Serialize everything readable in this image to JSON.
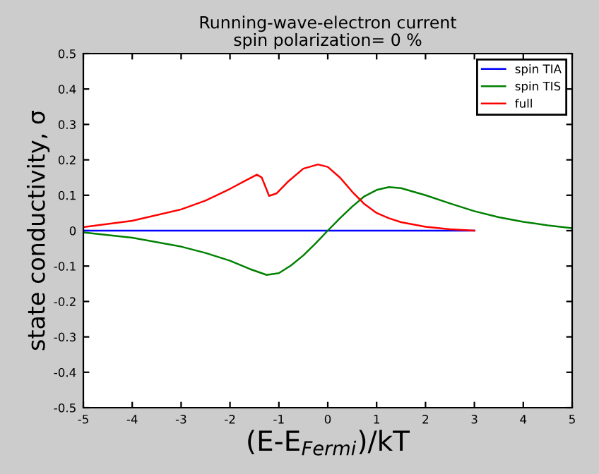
{
  "chart_data": {
    "type": "line",
    "title": "Running-wave-electron current\nspin polarization= 0 %",
    "xlabel": "(E-E$_{Fermi}$)/kT",
    "ylabel": "state conductivity, σ",
    "xlim": [
      -5,
      5
    ],
    "ylim": [
      -0.5,
      0.5
    ],
    "xticks": [
      -5,
      -4,
      -3,
      -2,
      -1,
      0,
      1,
      2,
      3,
      4,
      5
    ],
    "yticks": [
      -0.5,
      -0.4,
      -0.3,
      -0.2,
      -0.1,
      0,
      0.1,
      0.2,
      0.3,
      0.4,
      0.5
    ],
    "grid": false,
    "legend": "top right",
    "marker": "none",
    "line_style": "solid",
    "series": [
      {
        "name": "spin TIA",
        "color": "#0000ff",
        "x": [
          -5,
          -3,
          -1,
          1,
          3
        ],
        "values": [
          0,
          0,
          0,
          0,
          0
        ]
      },
      {
        "name": "spin TIS",
        "color": "#008000",
        "x": [
          -5,
          -4,
          -3,
          -2.5,
          -2,
          -1.6,
          -1.25,
          -1,
          -0.75,
          -0.5,
          -0.25,
          0,
          0.25,
          0.5,
          0.75,
          1,
          1.25,
          1.5,
          2,
          2.5,
          3,
          3.5,
          4,
          4.5,
          5
        ],
        "values": [
          -0.005,
          -0.02,
          -0.045,
          -0.063,
          -0.085,
          -0.108,
          -0.125,
          -0.12,
          -0.098,
          -0.07,
          -0.036,
          0,
          0.035,
          0.068,
          0.097,
          0.115,
          0.123,
          0.12,
          0.1,
          0.077,
          0.055,
          0.038,
          0.025,
          0.015,
          0.007
        ]
      },
      {
        "name": "full",
        "color": "#ff0000",
        "x": [
          -5,
          -4,
          -3,
          -2.5,
          -2,
          -1.7,
          -1.45,
          -1.35,
          -1.2,
          -1.05,
          -0.8,
          -0.5,
          -0.2,
          0,
          0.25,
          0.5,
          0.75,
          1,
          1.25,
          1.5,
          2,
          2.5,
          3
        ],
        "values": [
          0.01,
          0.028,
          0.06,
          0.085,
          0.118,
          0.14,
          0.158,
          0.15,
          0.098,
          0.105,
          0.14,
          0.175,
          0.187,
          0.18,
          0.15,
          0.11,
          0.075,
          0.05,
          0.035,
          0.024,
          0.011,
          0.004,
          0.0
        ]
      }
    ]
  }
}
